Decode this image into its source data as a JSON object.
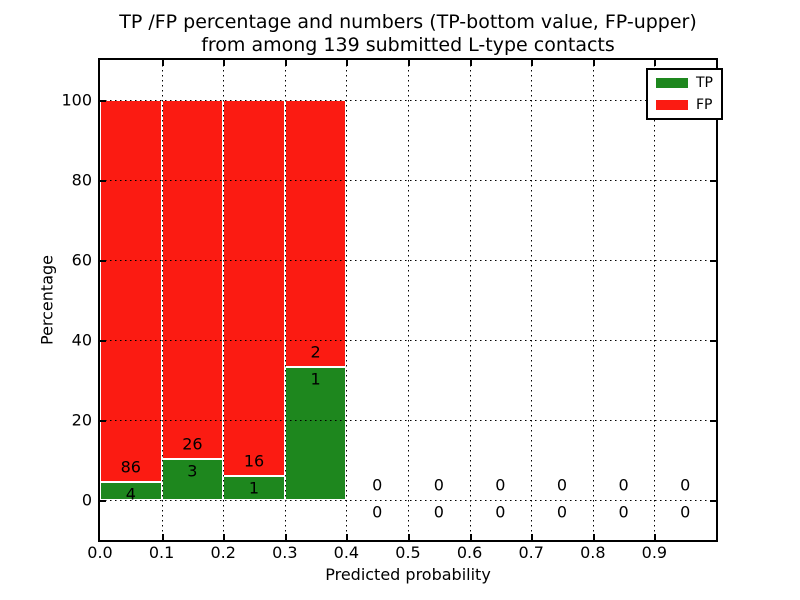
{
  "title": {
    "line1": "TP /FP percentage and numbers (TP-bottom value, FP-upper)",
    "line2": "from among 139 submitted L-type contacts"
  },
  "axes": {
    "xlabel": "Predicted probability",
    "ylabel": "Percentage",
    "x_tick_labels": [
      "0.0",
      "0.1",
      "0.2",
      "0.3",
      "0.4",
      "0.5",
      "0.6",
      "0.7",
      "0.8",
      "0.9"
    ],
    "y_tick_labels": [
      "0",
      "20",
      "40",
      "60",
      "80",
      "100"
    ]
  },
  "legend": [
    {
      "label": "TP",
      "color": "#1e871e"
    },
    {
      "label": "FP",
      "color": "#fb1b12"
    }
  ],
  "colors": {
    "tp_green": "#1e871e",
    "fp_red": "#fb1b12",
    "grid": "#000000",
    "background": "#ffffff",
    "bar_edge": "#ffffff"
  },
  "chart_data": {
    "type": "bar",
    "stacked": true,
    "title": "TP /FP percentage and numbers (TP-bottom value, FP-upper) from among 139 submitted L-type contacts",
    "xlabel": "Predicted probability",
    "ylabel": "Percentage",
    "xlim": [
      0.0,
      1.0
    ],
    "ylim": [
      -10,
      110
    ],
    "grid": "dotted",
    "legend_position": "upper right",
    "total_contacts": 139,
    "bin_edges": [
      0.0,
      0.1,
      0.2,
      0.3,
      0.4,
      0.5,
      0.6,
      0.7,
      0.8,
      0.9,
      1.0
    ],
    "series": [
      {
        "name": "TP",
        "color": "#1e871e",
        "counts": [
          4,
          3,
          1,
          1,
          0,
          0,
          0,
          0,
          0,
          0
        ],
        "percentages": [
          4.44,
          10.34,
          5.88,
          33.33,
          0,
          0,
          0,
          0,
          0,
          0
        ]
      },
      {
        "name": "FP",
        "color": "#fb1b12",
        "counts": [
          86,
          26,
          16,
          2,
          0,
          0,
          0,
          0,
          0,
          0
        ],
        "percentages": [
          95.56,
          89.66,
          94.12,
          66.67,
          0,
          0,
          0,
          0,
          0,
          0
        ]
      }
    ]
  }
}
